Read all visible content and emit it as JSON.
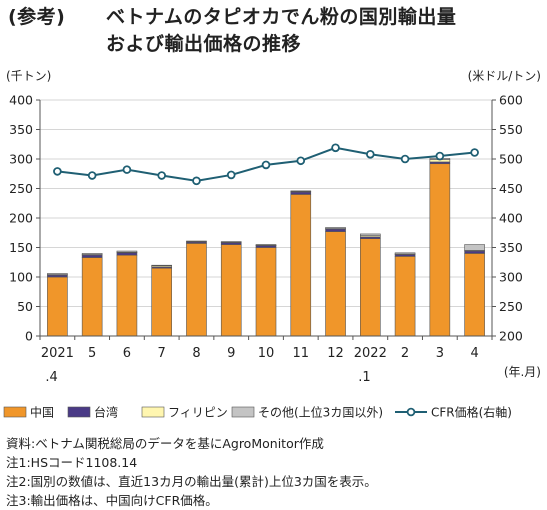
{
  "title": {
    "tag": "(参考)",
    "line1": "ベトナムのタピオカでん粉の国別輸出量",
    "line2": "および輸出価格の推移"
  },
  "chart_data": {
    "type": "bar",
    "stacked": true,
    "categories": [
      "2021",
      "5",
      "6",
      "7",
      "8",
      "9",
      "10",
      "11",
      "12",
      "2022",
      "2",
      "3",
      "4"
    ],
    "category_sublabels": [
      ".4",
      "",
      "",
      "",
      "",
      "",
      "",
      "",
      "",
      ".1",
      "",
      "",
      ""
    ],
    "left_axis": {
      "unit": "(千トン)",
      "ylim": [
        0,
        400
      ],
      "ticks": [
        0,
        50,
        100,
        150,
        200,
        250,
        300,
        350,
        400
      ]
    },
    "right_axis": {
      "unit": "(米ドル/トン)",
      "ylim": [
        200,
        600
      ],
      "ticks": [
        200,
        250,
        300,
        350,
        400,
        450,
        500,
        550,
        600
      ]
    },
    "x_unit": "(年.月)",
    "series": [
      {
        "name": "中国",
        "color": "#f0962a",
        "axis": "left",
        "values": [
          100,
          133,
          137,
          115,
          157,
          155,
          150,
          240,
          177,
          165,
          135,
          292,
          140
        ]
      },
      {
        "name": "台湾",
        "color": "#4a3a86",
        "axis": "left",
        "values": [
          3,
          4,
          4,
          2,
          2,
          3,
          3,
          4,
          4,
          3,
          3,
          3,
          4
        ]
      },
      {
        "name": "フィリピン",
        "color": "#fff6b0",
        "axis": "left",
        "values": [
          1,
          1,
          1,
          2,
          1,
          1,
          1,
          1,
          1,
          2,
          1,
          4,
          1
        ]
      },
      {
        "name": "その他(上位3カ国以外)",
        "color": "#c4c4c4",
        "axis": "left",
        "values": [
          2,
          2,
          2,
          1,
          1,
          1,
          1,
          1,
          2,
          3,
          2,
          2,
          10
        ]
      },
      {
        "name": "CFR価格(右軸)",
        "color": "#1f5f73",
        "axis": "right",
        "type": "line",
        "values": [
          479,
          472,
          482,
          472,
          463,
          473,
          490,
          497,
          519,
          508,
          500,
          505,
          511
        ]
      }
    ],
    "grid": "horizontal",
    "legend": "bottom"
  },
  "notes": [
    "資料:ベトナム関税総局のデータを基にAgroMonitor作成",
    "注1:HSコード1108.14",
    "注2:国別の数値は、直近13カ月の輸出量(累計)上位3カ国を表示。",
    "注3:輸出価格は、中国向けCFR価格。"
  ]
}
